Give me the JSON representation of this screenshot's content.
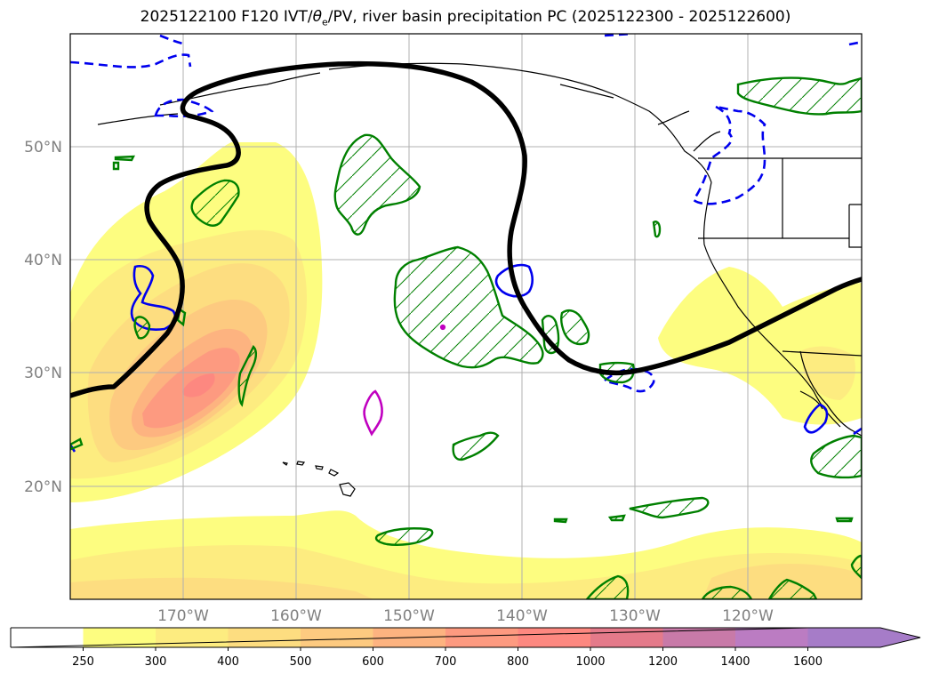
{
  "title": {
    "prefix": "2025122100 F120 IVT/",
    "theta": "θ",
    "theta_sub": "e",
    "suffix": "/PV, river basin precipitation PC (2025122300 - 2025122600)"
  },
  "map": {
    "lat_labels": [
      "50°N",
      "40°N",
      "30°N",
      "20°N"
    ],
    "lon_labels": [
      "170°W",
      "160°W",
      "150°W",
      "140°W",
      "130°W",
      "120°W"
    ]
  },
  "colorbar": {
    "ticks": [
      "250",
      "300",
      "400",
      "500",
      "600",
      "700",
      "800",
      "1000",
      "1200",
      "1400",
      "1600"
    ],
    "colors": [
      "#ffffff",
      "#fdfd80",
      "#fdec80",
      "#fddd80",
      "#fdca80",
      "#fdb380",
      "#fd9a80",
      "#fd8880",
      "#e47a8a",
      "#c87aa8",
      "#bb7cc2",
      "#a67cc8"
    ]
  },
  "colors": {
    "ivt_contour": "#000000",
    "pv_dashed": "#0000ee",
    "pv_solid": "#0000ee",
    "precip_hatch": "#008000",
    "magenta": "#c000c0",
    "grid": "#b0b0b0"
  }
}
